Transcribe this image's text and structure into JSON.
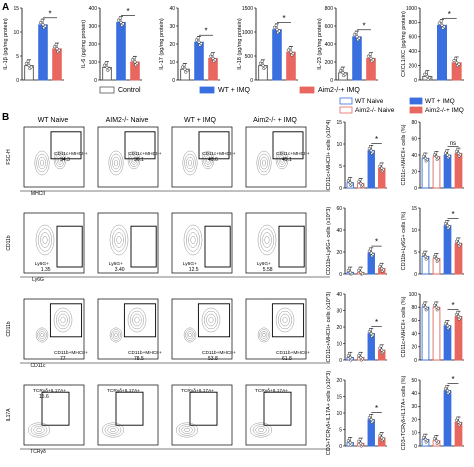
{
  "panel_labels": {
    "A": "A",
    "B": "B"
  },
  "colors": {
    "control": "#ffffff",
    "wt_imq": "#3a6fe0",
    "aim2_imq": "#e8675f",
    "wt_naive": "#ffffff",
    "aim2_naive": "#ffffff"
  },
  "legend_a": [
    {
      "label": "Control",
      "key": "control"
    },
    {
      "label": "WT + IMQ",
      "key": "wt_imq"
    },
    {
      "label": "Aim2-/-+ IMQ",
      "key": "aim2_imq"
    }
  ],
  "legend_b": [
    {
      "label": "WT Naive",
      "key": "wt_naive"
    },
    {
      "label": "WT + IMQ",
      "key": "wt_imq"
    },
    {
      "label": "Aim2-/- Naive",
      "key": "aim2_naive"
    },
    {
      "label": "Aim2-/-+ IMQ",
      "key": "aim2_imq"
    }
  ],
  "column_headers": [
    "WT Naive",
    "AIM2-/- Naive",
    "WT + IMQ",
    "Aim2-/- + IMQ"
  ],
  "row_axes": [
    {
      "y": "FSC-H",
      "x": "MHCII"
    },
    {
      "y": "CD11b",
      "x": "Ly6G"
    },
    {
      "y": "CD11b",
      "x": "CD11c"
    },
    {
      "y": "IL17A",
      "x": "TCRγδ"
    }
  ],
  "gate_labels": [
    [
      "CD11c+MHCII+",
      "CD11c+MHCII+",
      "CD11c+MHCII+",
      "CD11c+MHCII+"
    ],
    [
      "Ly6G+",
      "Ly6G+",
      "Ly6G+",
      "Ly6G+"
    ],
    [
      "CD11b+MHCII+",
      "CD11b+MHCII+",
      "CD11b+MHCII+",
      "CD11b+MHCII+"
    ],
    [
      "TCRγδ+IL17A+",
      "TCRγδ+IL17A+",
      "TCRγδ+IL17A+",
      "TCRγδ+IL17A+"
    ]
  ],
  "gate_values": [
    [
      "34.3",
      "36.1",
      "40.6",
      "45.1"
    ],
    [
      "1.35",
      "3.40",
      "12.5",
      "5.58"
    ],
    [
      "77",
      "78.5",
      "53.8",
      "61.8"
    ],
    [
      "15.6",
      "",
      "",
      ""
    ]
  ],
  "chart_data": [
    {
      "type": "bar",
      "group": "A",
      "ylabel": "IL-1β (pg/mg protein)",
      "ylim": [
        0,
        15
      ],
      "ticks": [
        0,
        5,
        10,
        15
      ],
      "categories": [
        "Control",
        "WT + IMQ",
        "Aim2-/-+ IMQ"
      ],
      "values": [
        3,
        11.5,
        6.5
      ],
      "sig": "*"
    },
    {
      "type": "bar",
      "group": "A",
      "ylabel": "IL-6 (pg/mg protein)",
      "ylim": [
        0,
        400
      ],
      "ticks": [
        0,
        100,
        200,
        300,
        400
      ],
      "categories": [
        "Control",
        "WT + IMQ",
        "Aim2-/-+ IMQ"
      ],
      "values": [
        70,
        320,
        100
      ],
      "sig": "*"
    },
    {
      "type": "bar",
      "group": "A",
      "ylabel": "IL-17 (pg/mg protein)",
      "ylim": [
        0,
        40
      ],
      "ticks": [
        0,
        10,
        20,
        30,
        40
      ],
      "categories": [
        "Control",
        "WT + IMQ",
        "Aim2-/-+ IMQ"
      ],
      "values": [
        6,
        21,
        12
      ],
      "sig": "*"
    },
    {
      "type": "bar",
      "group": "A",
      "ylabel": "IL-18 (pg/mg protein)",
      "ylim": [
        0,
        1500
      ],
      "ticks": [
        0,
        500,
        1000,
        1500
      ],
      "categories": [
        "Control",
        "WT + IMQ",
        "Aim2-/-+ IMQ"
      ],
      "values": [
        300,
        1050,
        580
      ],
      "sig": "*"
    },
    {
      "type": "bar",
      "group": "A",
      "ylabel": "IL-23 (pg/mg protein)",
      "ylim": [
        0,
        800
      ],
      "ticks": [
        0,
        200,
        400,
        600,
        800
      ],
      "categories": [
        "Control",
        "WT + IMQ",
        "Aim2-/-+ IMQ"
      ],
      "values": [
        80,
        480,
        240
      ],
      "sig": "*"
    },
    {
      "type": "bar",
      "group": "A",
      "ylabel": "CXCL1/KC (pg/mg protein)",
      "ylim": [
        0,
        1000
      ],
      "ticks": [
        0,
        200,
        400,
        600,
        800,
        1000
      ],
      "categories": [
        "Control",
        "WT + IMQ",
        "Aim2-/-+ IMQ"
      ],
      "values": [
        50,
        760,
        240
      ],
      "sig": "*"
    },
    {
      "type": "bar",
      "group": "B",
      "ylabel": "CD11c+MHCII+ cells (x10^4)",
      "ylim": [
        0,
        15
      ],
      "ticks": [
        0,
        5,
        10,
        15
      ],
      "categories": [
        "WT Naive",
        "Aim2-/- Naive",
        "WT + IMQ",
        "Aim2-/-+ IMQ"
      ],
      "values": [
        1.2,
        1.0,
        8.5,
        4.5
      ],
      "sig": "*"
    },
    {
      "type": "bar",
      "group": "B",
      "ylabel": "CD11c+MHCII+ cells (%)",
      "ylim": [
        0,
        80
      ],
      "ticks": [
        0,
        20,
        40,
        60,
        80
      ],
      "categories": [
        "WT Naive",
        "Aim2-/- Naive",
        "WT + IMQ",
        "Aim2-/-+ IMQ"
      ],
      "values": [
        36,
        38,
        40,
        42
      ],
      "sig": "ns"
    },
    {
      "type": "bar",
      "group": "B",
      "ylabel": "CD11b+Ly6G+ cells (x10^3)",
      "ylim": [
        0,
        60
      ],
      "ticks": [
        0,
        20,
        40,
        60
      ],
      "categories": [
        "WT Naive",
        "Aim2-/- Naive",
        "WT + IMQ",
        "Aim2-/-+ IMQ"
      ],
      "values": [
        1.5,
        1.5,
        19,
        5
      ],
      "sig": "*"
    },
    {
      "type": "bar",
      "group": "B",
      "ylabel": "CD11b+Ly6G+ cells (%)",
      "ylim": [
        0,
        15
      ],
      "ticks": [
        0,
        5,
        10,
        15
      ],
      "categories": [
        "WT Naive",
        "Aim2-/- Naive",
        "WT + IMQ",
        "Aim2-/-+ IMQ"
      ],
      "values": [
        4,
        3.5,
        11,
        7
      ],
      "sig": "*"
    },
    {
      "type": "bar",
      "group": "B",
      "ylabel": "CD11c+MHCII+ cells (x10^3)",
      "ylim": [
        0,
        40
      ],
      "ticks": [
        0,
        10,
        20,
        30,
        40
      ],
      "categories": [
        "WT Naive",
        "Aim2-/- Naive",
        "WT + IMQ",
        "Aim2-/-+ IMQ"
      ],
      "values": [
        1.5,
        1.5,
        16,
        6
      ],
      "sig": "*"
    },
    {
      "type": "bar",
      "group": "B",
      "ylabel": "CD11c+MHCII+ cells (%)",
      "ylim": [
        0,
        100
      ],
      "ticks": [
        0,
        20,
        40,
        60,
        80,
        100
      ],
      "categories": [
        "WT Naive",
        "Aim2-/- Naive",
        "WT + IMQ",
        "Aim2-/-+ IMQ"
      ],
      "values": [
        80,
        80,
        52,
        66
      ],
      "sig": "*"
    },
    {
      "type": "bar",
      "group": "B",
      "ylabel": "CD3+TCRγδ+IL17A+ cells (x10^3)",
      "ylim": [
        0,
        20
      ],
      "ticks": [
        0,
        5,
        10,
        15,
        20
      ],
      "categories": [
        "WT Naive",
        "Aim2-/- Naive",
        "WT + IMQ",
        "Aim2-/-+ IMQ"
      ],
      "values": [
        1,
        0.8,
        8,
        2.5
      ],
      "sig": "*"
    },
    {
      "type": "bar",
      "group": "B",
      "ylabel": "CD3+TCRγδ+IL17A+ cells (%)",
      "ylim": [
        0,
        50
      ],
      "ticks": [
        0,
        10,
        20,
        30,
        40,
        50
      ],
      "categories": [
        "WT Naive",
        "Aim2-/- Naive",
        "WT + IMQ",
        "Aim2-/-+ IMQ"
      ],
      "values": [
        5,
        4,
        42,
        18
      ],
      "sig": "*"
    }
  ]
}
